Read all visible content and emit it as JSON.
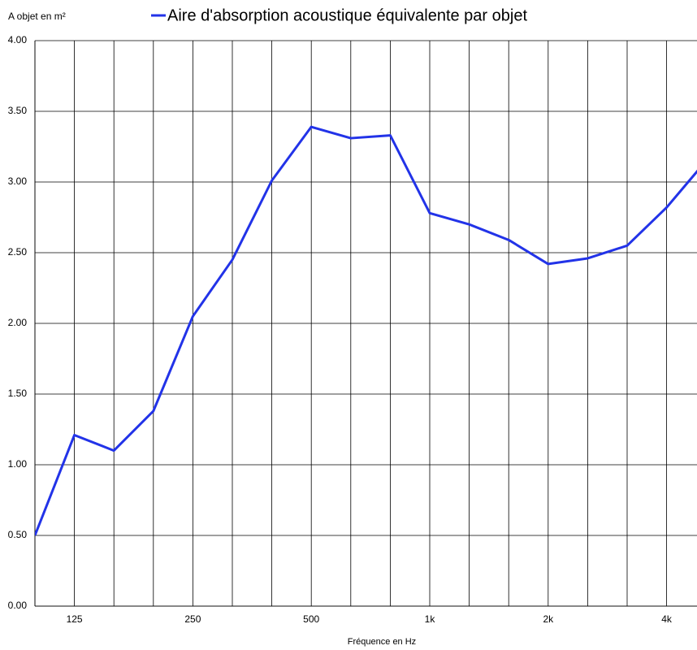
{
  "chart_data": {
    "type": "line",
    "y_axis_label": "A objet en m²",
    "x_axis_label": "Fréquence en Hz",
    "categories": [
      null,
      "125",
      null,
      null,
      "250",
      null,
      null,
      "500",
      null,
      null,
      "1k",
      null,
      null,
      "2k",
      null,
      null,
      "4k",
      null
    ],
    "series": [
      {
        "name": "Aire d'absorption acoustique équivalente par objet",
        "color": "#2233e8",
        "values": [
          0.5,
          1.21,
          1.1,
          1.38,
          2.05,
          2.45,
          3.01,
          3.39,
          3.31,
          3.33,
          2.78,
          2.7,
          2.59,
          2.42,
          2.46,
          2.55,
          2.82,
          3.15
        ]
      }
    ],
    "ylim": [
      0,
      4
    ],
    "yticks": [
      {
        "value": 0,
        "label": "0.00"
      },
      {
        "value": 0.5,
        "label": "0.50"
      },
      {
        "value": 1,
        "label": "1.00"
      },
      {
        "value": 1.5,
        "label": "1.50"
      },
      {
        "value": 2,
        "label": "2.00"
      },
      {
        "value": 2.5,
        "label": "2.50"
      },
      {
        "value": 3,
        "label": "3.00"
      },
      {
        "value": 3.5,
        "label": "3.50"
      },
      {
        "value": 4,
        "label": "4.00"
      }
    ],
    "grid": true
  }
}
